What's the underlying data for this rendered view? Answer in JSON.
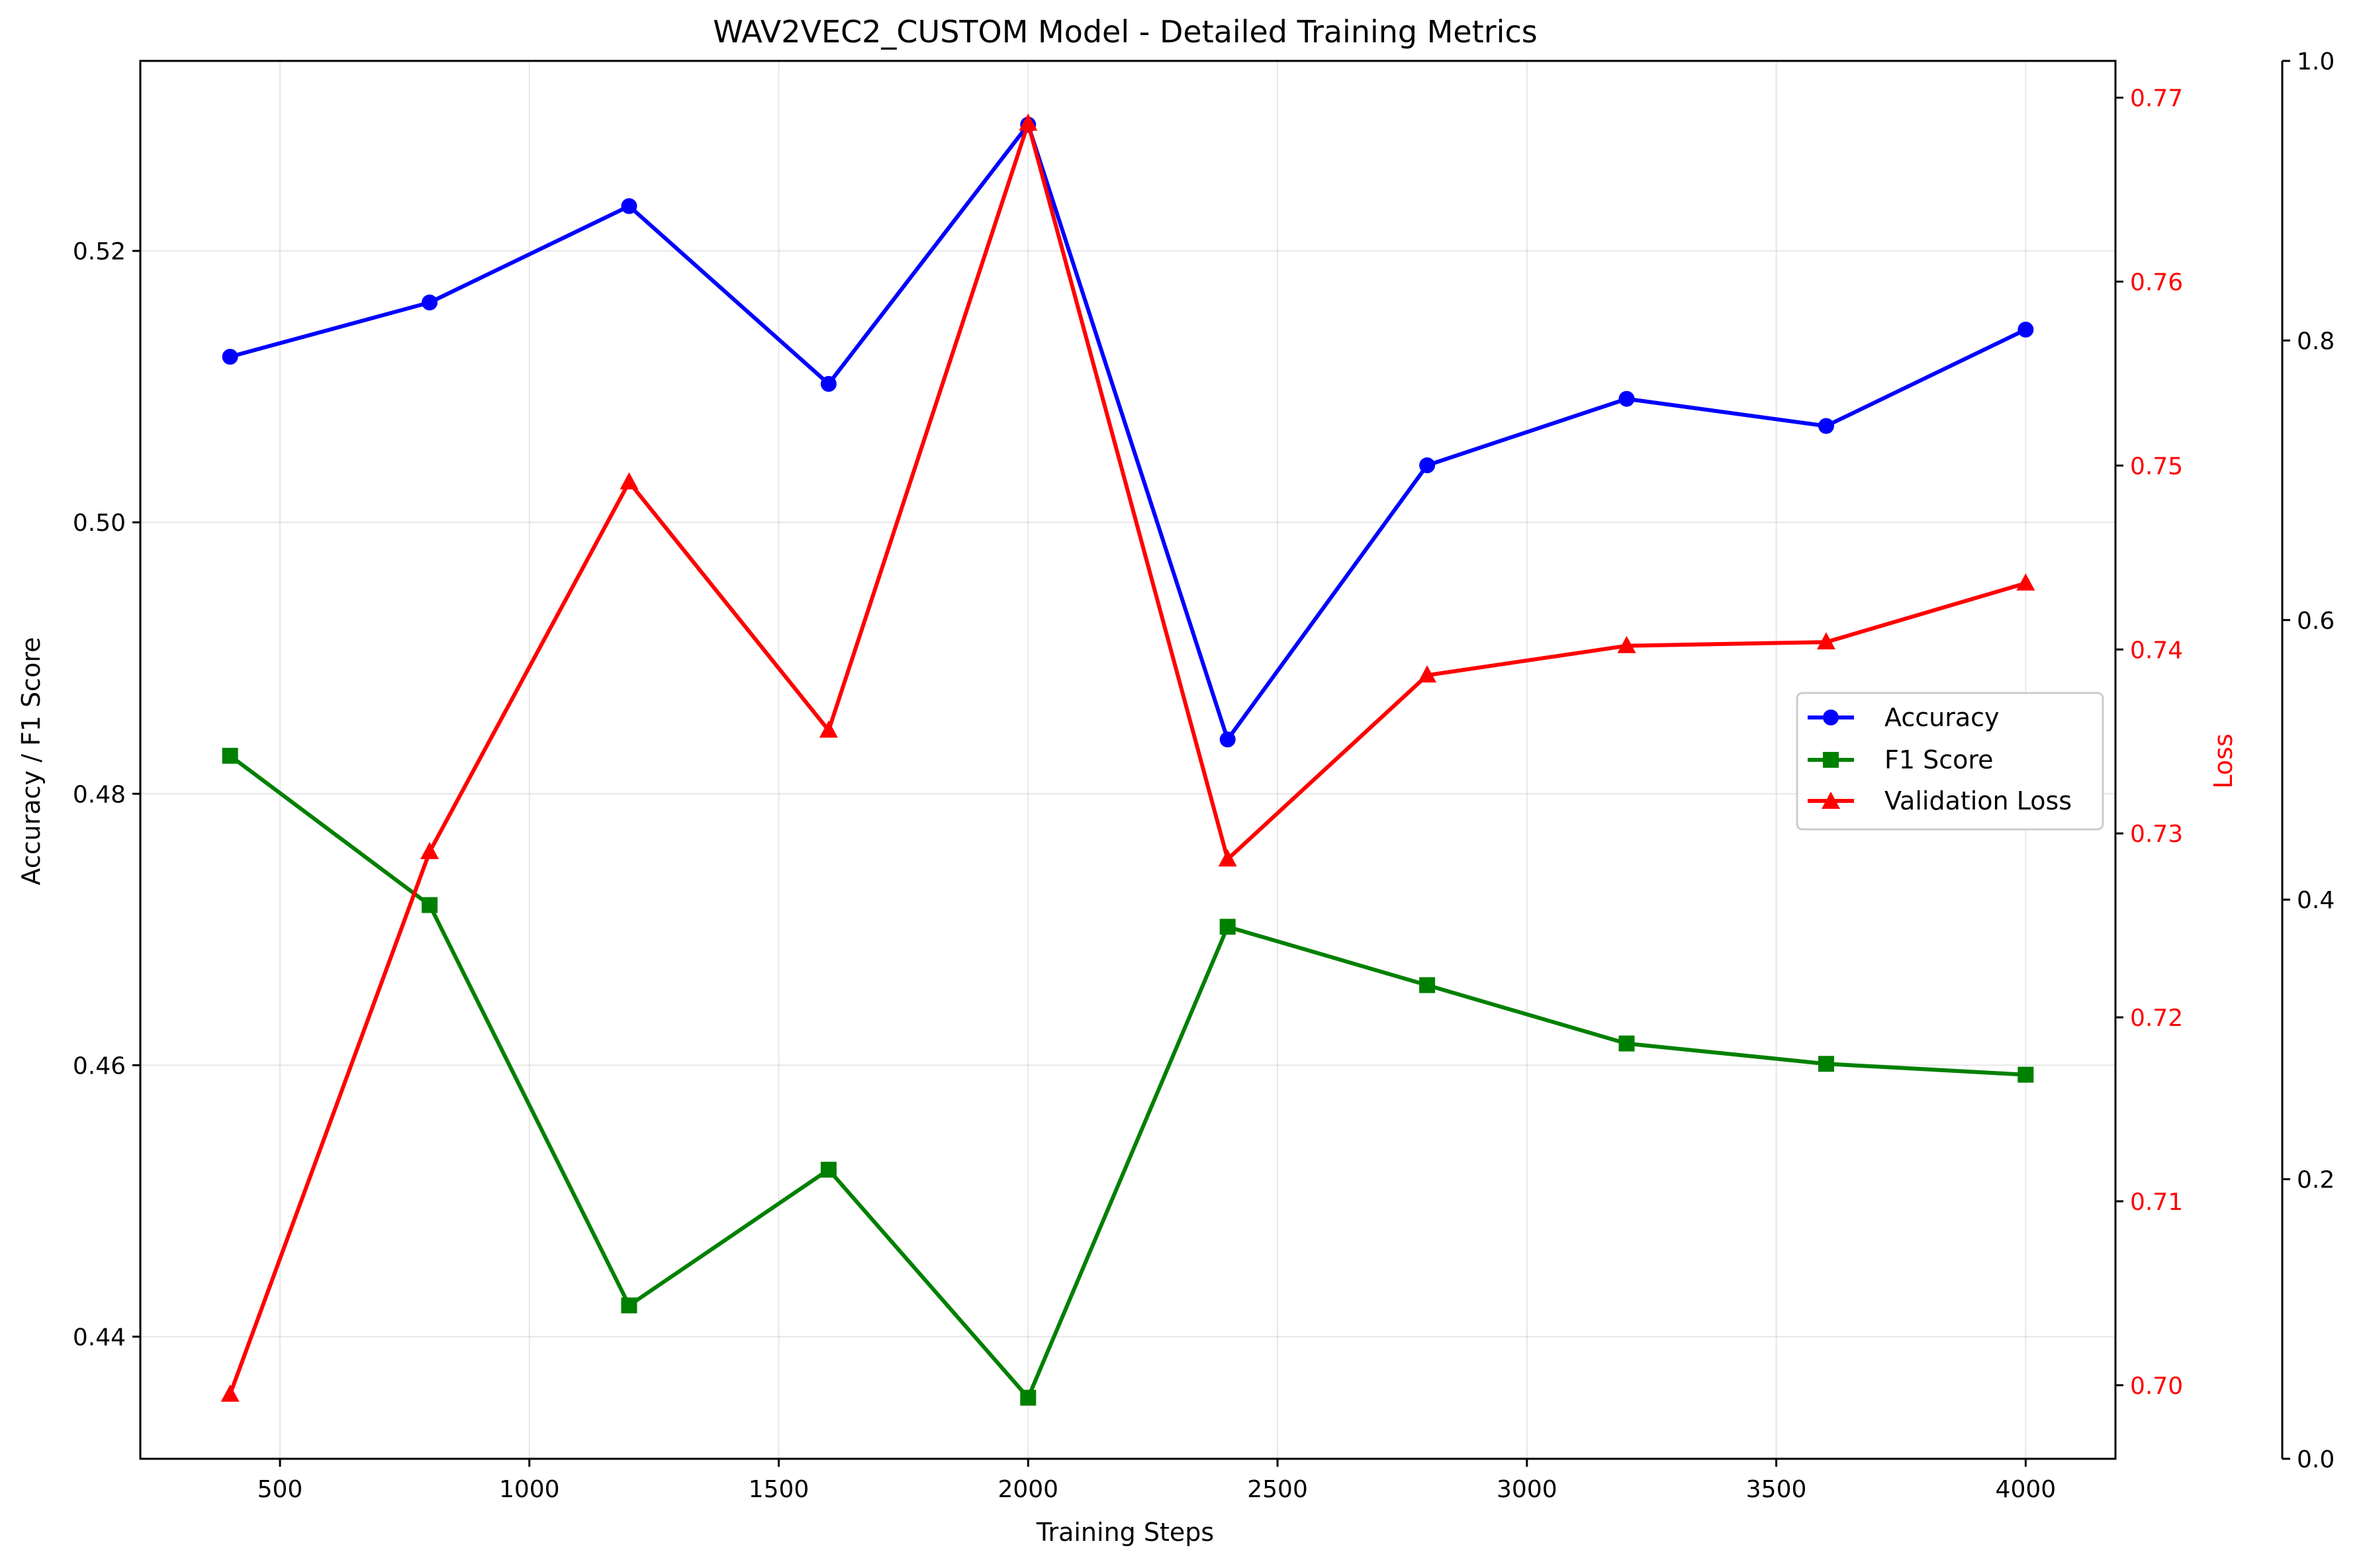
{
  "chart_data": {
    "type": "line",
    "title": "WAV2VEC2_CUSTOM Model - Detailed Training Metrics",
    "xlabel": "Training Steps",
    "ylabel_left": "Accuracy / F1 Score",
    "ylabel_right": "Loss",
    "x": [
      400,
      800,
      1200,
      1600,
      2000,
      2400,
      2800,
      3200,
      3600,
      4000
    ],
    "xlim": [
      220,
      4180
    ],
    "x_ticks": [
      500,
      1000,
      1500,
      2000,
      2500,
      3000,
      3500,
      4000
    ],
    "ylim_left": [
      0.431,
      0.534
    ],
    "y_ticks_left": [
      0.44,
      0.46,
      0.48,
      0.5,
      0.52
    ],
    "y_tick_labels_left": [
      "0.44",
      "0.46",
      "0.48",
      "0.50",
      "0.52"
    ],
    "ylim_right": [
      0.696,
      0.772
    ],
    "y_ticks_right": [
      0.7,
      0.71,
      0.72,
      0.73,
      0.74,
      0.75,
      0.76,
      0.77
    ],
    "y_tick_labels_right": [
      "0.70",
      "0.71",
      "0.72",
      "0.73",
      "0.74",
      "0.75",
      "0.76",
      "0.77"
    ],
    "ylim_extra": [
      0.0,
      1.0
    ],
    "y_ticks_extra": [
      0.0,
      0.2,
      0.4,
      0.6,
      0.8,
      1.0
    ],
    "y_tick_labels_extra": [
      "0.0",
      "0.2",
      "0.4",
      "0.6",
      "0.8",
      "1.0"
    ],
    "grid": true,
    "legend_position": "center-right",
    "series": [
      {
        "name": "Accuracy",
        "axis": "left",
        "color": "#0000ff",
        "marker": "circle",
        "values": [
          0.5122,
          0.5162,
          0.5233,
          0.5102,
          0.5293,
          0.484,
          0.5042,
          0.5091,
          0.5071,
          0.5142
        ]
      },
      {
        "name": "F1 Score",
        "axis": "left",
        "color": "#008000",
        "marker": "square",
        "values": [
          0.4828,
          0.4718,
          0.4423,
          0.4523,
          0.4355,
          0.4702,
          0.4659,
          0.4616,
          0.4601,
          0.4593
        ]
      },
      {
        "name": "Validation Loss",
        "axis": "right",
        "color": "#ff0000",
        "marker": "triangle",
        "values": [
          0.6995,
          0.729,
          0.7491,
          0.7356,
          0.7686,
          0.7286,
          0.7386,
          0.7402,
          0.7404,
          0.7436
        ]
      }
    ]
  }
}
